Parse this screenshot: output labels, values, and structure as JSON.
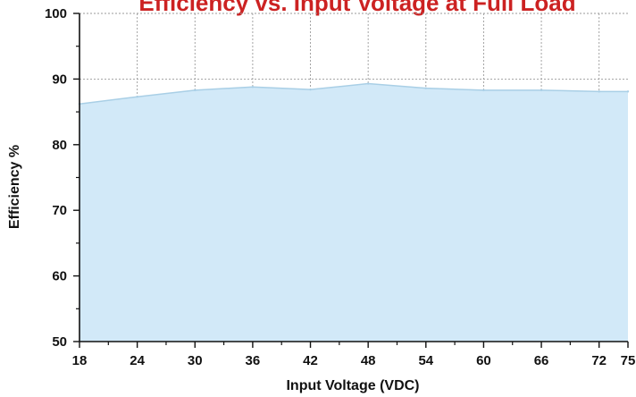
{
  "chart_data": {
    "type": "area",
    "title": "Efficiency vs. Input Voltage at Full Load",
    "xlabel": "Input Voltage (VDC)",
    "ylabel": "Efficiency %",
    "xlim": [
      18,
      75
    ],
    "ylim": [
      50,
      100
    ],
    "x_ticks": [
      18,
      24,
      30,
      36,
      42,
      48,
      54,
      60,
      66,
      72,
      75
    ],
    "x_tick_labels": [
      "18",
      "24",
      "30",
      "36",
      "42",
      "48",
      "54",
      "60",
      "66",
      "72",
      "75"
    ],
    "y_ticks": [
      50,
      60,
      70,
      80,
      90,
      100
    ],
    "y_tick_labels": [
      "50",
      "60",
      "70",
      "80",
      "90",
      "100"
    ],
    "grid": true,
    "series": [
      {
        "x": [
          18,
          24,
          30,
          36,
          42,
          48,
          54,
          60,
          66,
          72,
          75
        ],
        "values": [
          86.2,
          87.3,
          88.3,
          88.8,
          88.4,
          89.3,
          88.6,
          88.3,
          88.3,
          88.1,
          88.1
        ]
      }
    ],
    "colors": {
      "fill": "#d2e9f8",
      "line": "#a9cfe6",
      "title": "#cc2222",
      "grid": "#9a9a9a",
      "axis": "#111111"
    }
  }
}
